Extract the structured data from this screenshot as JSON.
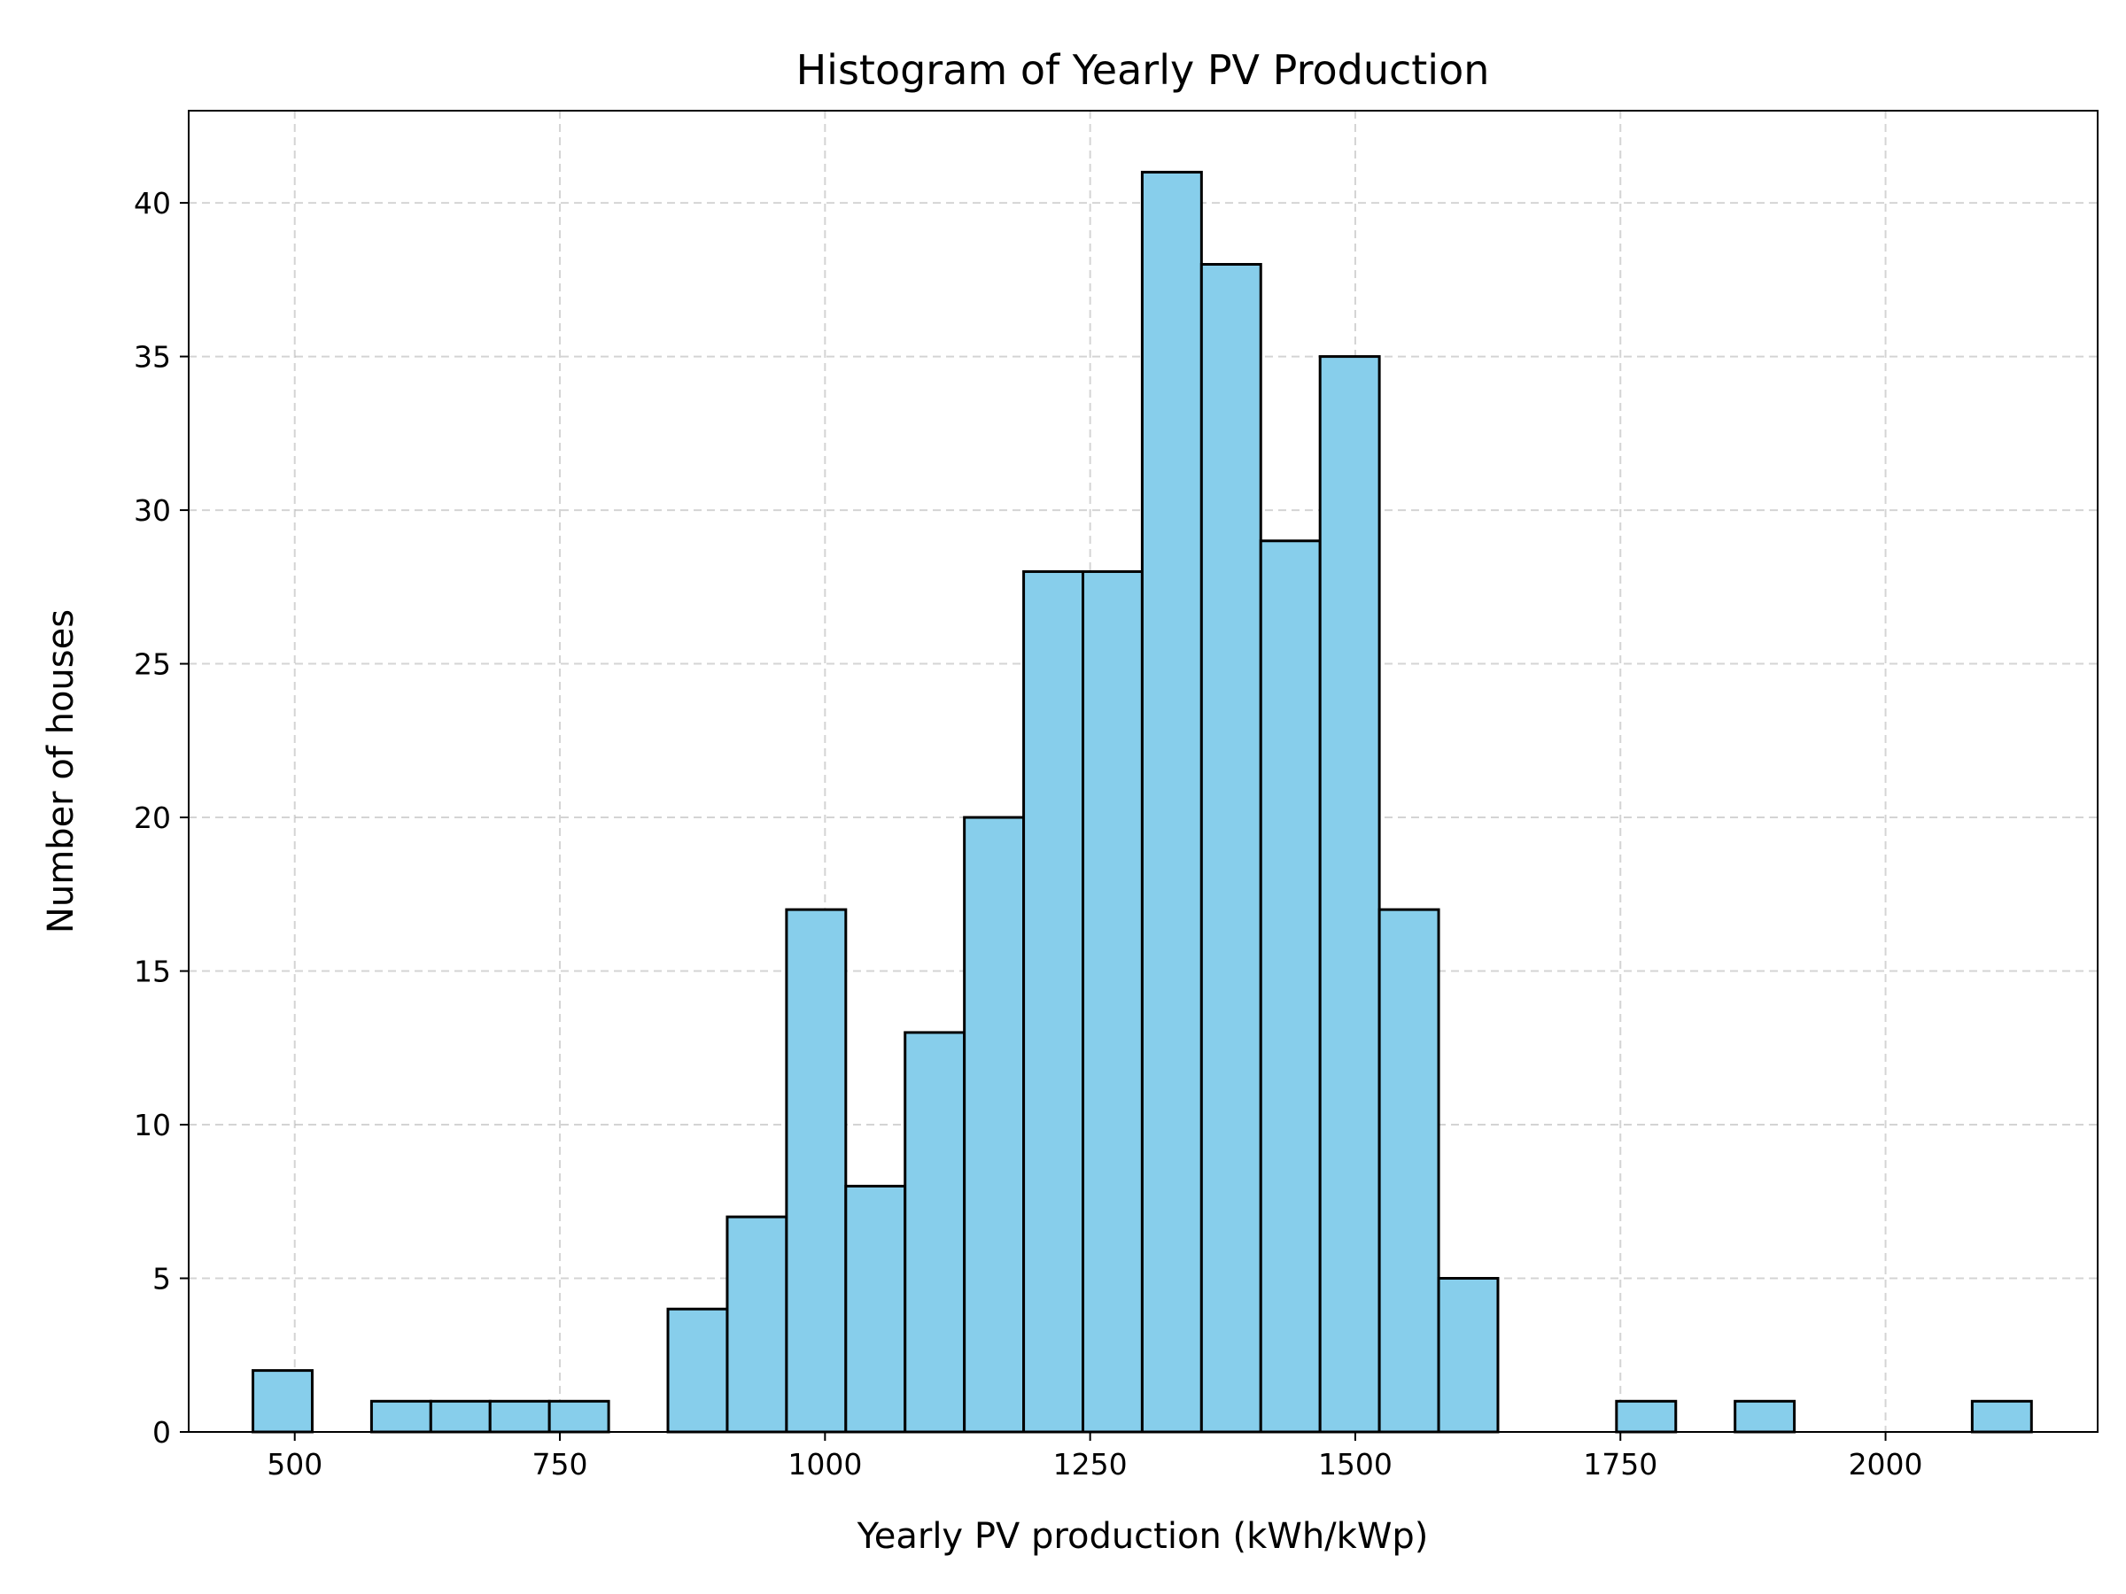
{
  "chart_data": {
    "type": "bar",
    "title": "Histogram of Yearly PV Production",
    "xlabel": "Yearly PV production (kWh/kWp)",
    "ylabel": "Number of houses",
    "bin_edges": [
      460.6,
      516.5,
      572.4,
      628.3,
      684.2,
      740.1,
      796.0,
      851.9,
      907.8,
      963.7,
      1019.6,
      1075.5,
      1131.4,
      1187.3,
      1243.2,
      1299.1,
      1355.0,
      1410.9,
      1466.8,
      1522.7,
      1578.6,
      1634.5,
      1690.4,
      1746.3,
      1802.2,
      1858.1,
      1914.0,
      1969.9,
      2025.8,
      2081.7,
      2137.6
    ],
    "counts": [
      2,
      0,
      1,
      1,
      1,
      1,
      0,
      4,
      7,
      17,
      8,
      13,
      20,
      28,
      28,
      41,
      38,
      29,
      35,
      17,
      5,
      0,
      0,
      1,
      0,
      1,
      0,
      0,
      0,
      1
    ],
    "xlim": [
      400,
      2200
    ],
    "ylim": [
      0,
      43
    ],
    "xticks": [
      500,
      750,
      1000,
      1250,
      1500,
      1750,
      2000
    ],
    "yticks": [
      0,
      5,
      10,
      15,
      20,
      25,
      30,
      35,
      40
    ],
    "bar_color": "#87ceeb",
    "edge_color": "#000000",
    "grid": true,
    "grid_style": "dashed"
  }
}
